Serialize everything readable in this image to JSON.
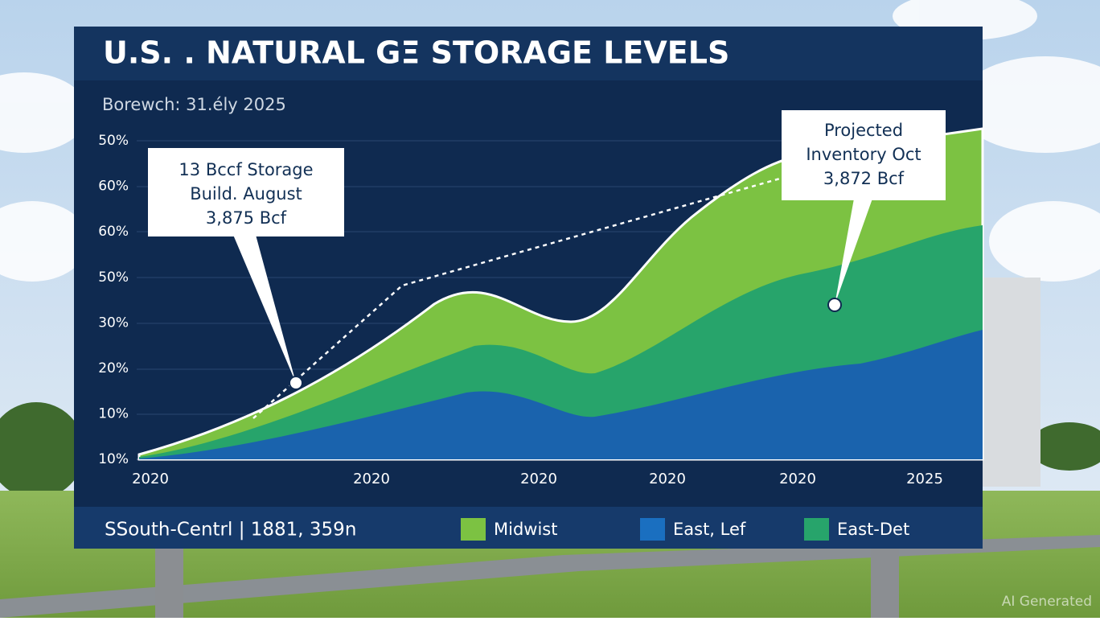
{
  "billboard": {
    "title": "U.S. . NATURAL GΞ STORAGE LEVELS",
    "subtitle": "Borewch: 31.ély 2025",
    "y_axis_labels": [
      "50%",
      "60%",
      "60%",
      "50%",
      "30%",
      "20%",
      "10%",
      "10%"
    ],
    "x_axis_labels": [
      "2020",
      "2020",
      "2020",
      "2020",
      "2020",
      "2025"
    ],
    "callouts": [
      {
        "lines": [
          "13 Bccf Storage",
          "Build. August",
          "3,875 Bcf"
        ]
      },
      {
        "lines": [
          "Projected",
          "Inventory Oct",
          "3,872 Bcf"
        ]
      }
    ],
    "footer_label": "SSouth-Centrl | 1881, 359n",
    "legend": [
      {
        "name": "Midwist",
        "color": "#7cc242"
      },
      {
        "name": "East, Lef",
        "color": "#1a6fc0"
      },
      {
        "name": "East-Det",
        "color": "#27a46b"
      }
    ]
  },
  "watermark": "AI Generated"
}
